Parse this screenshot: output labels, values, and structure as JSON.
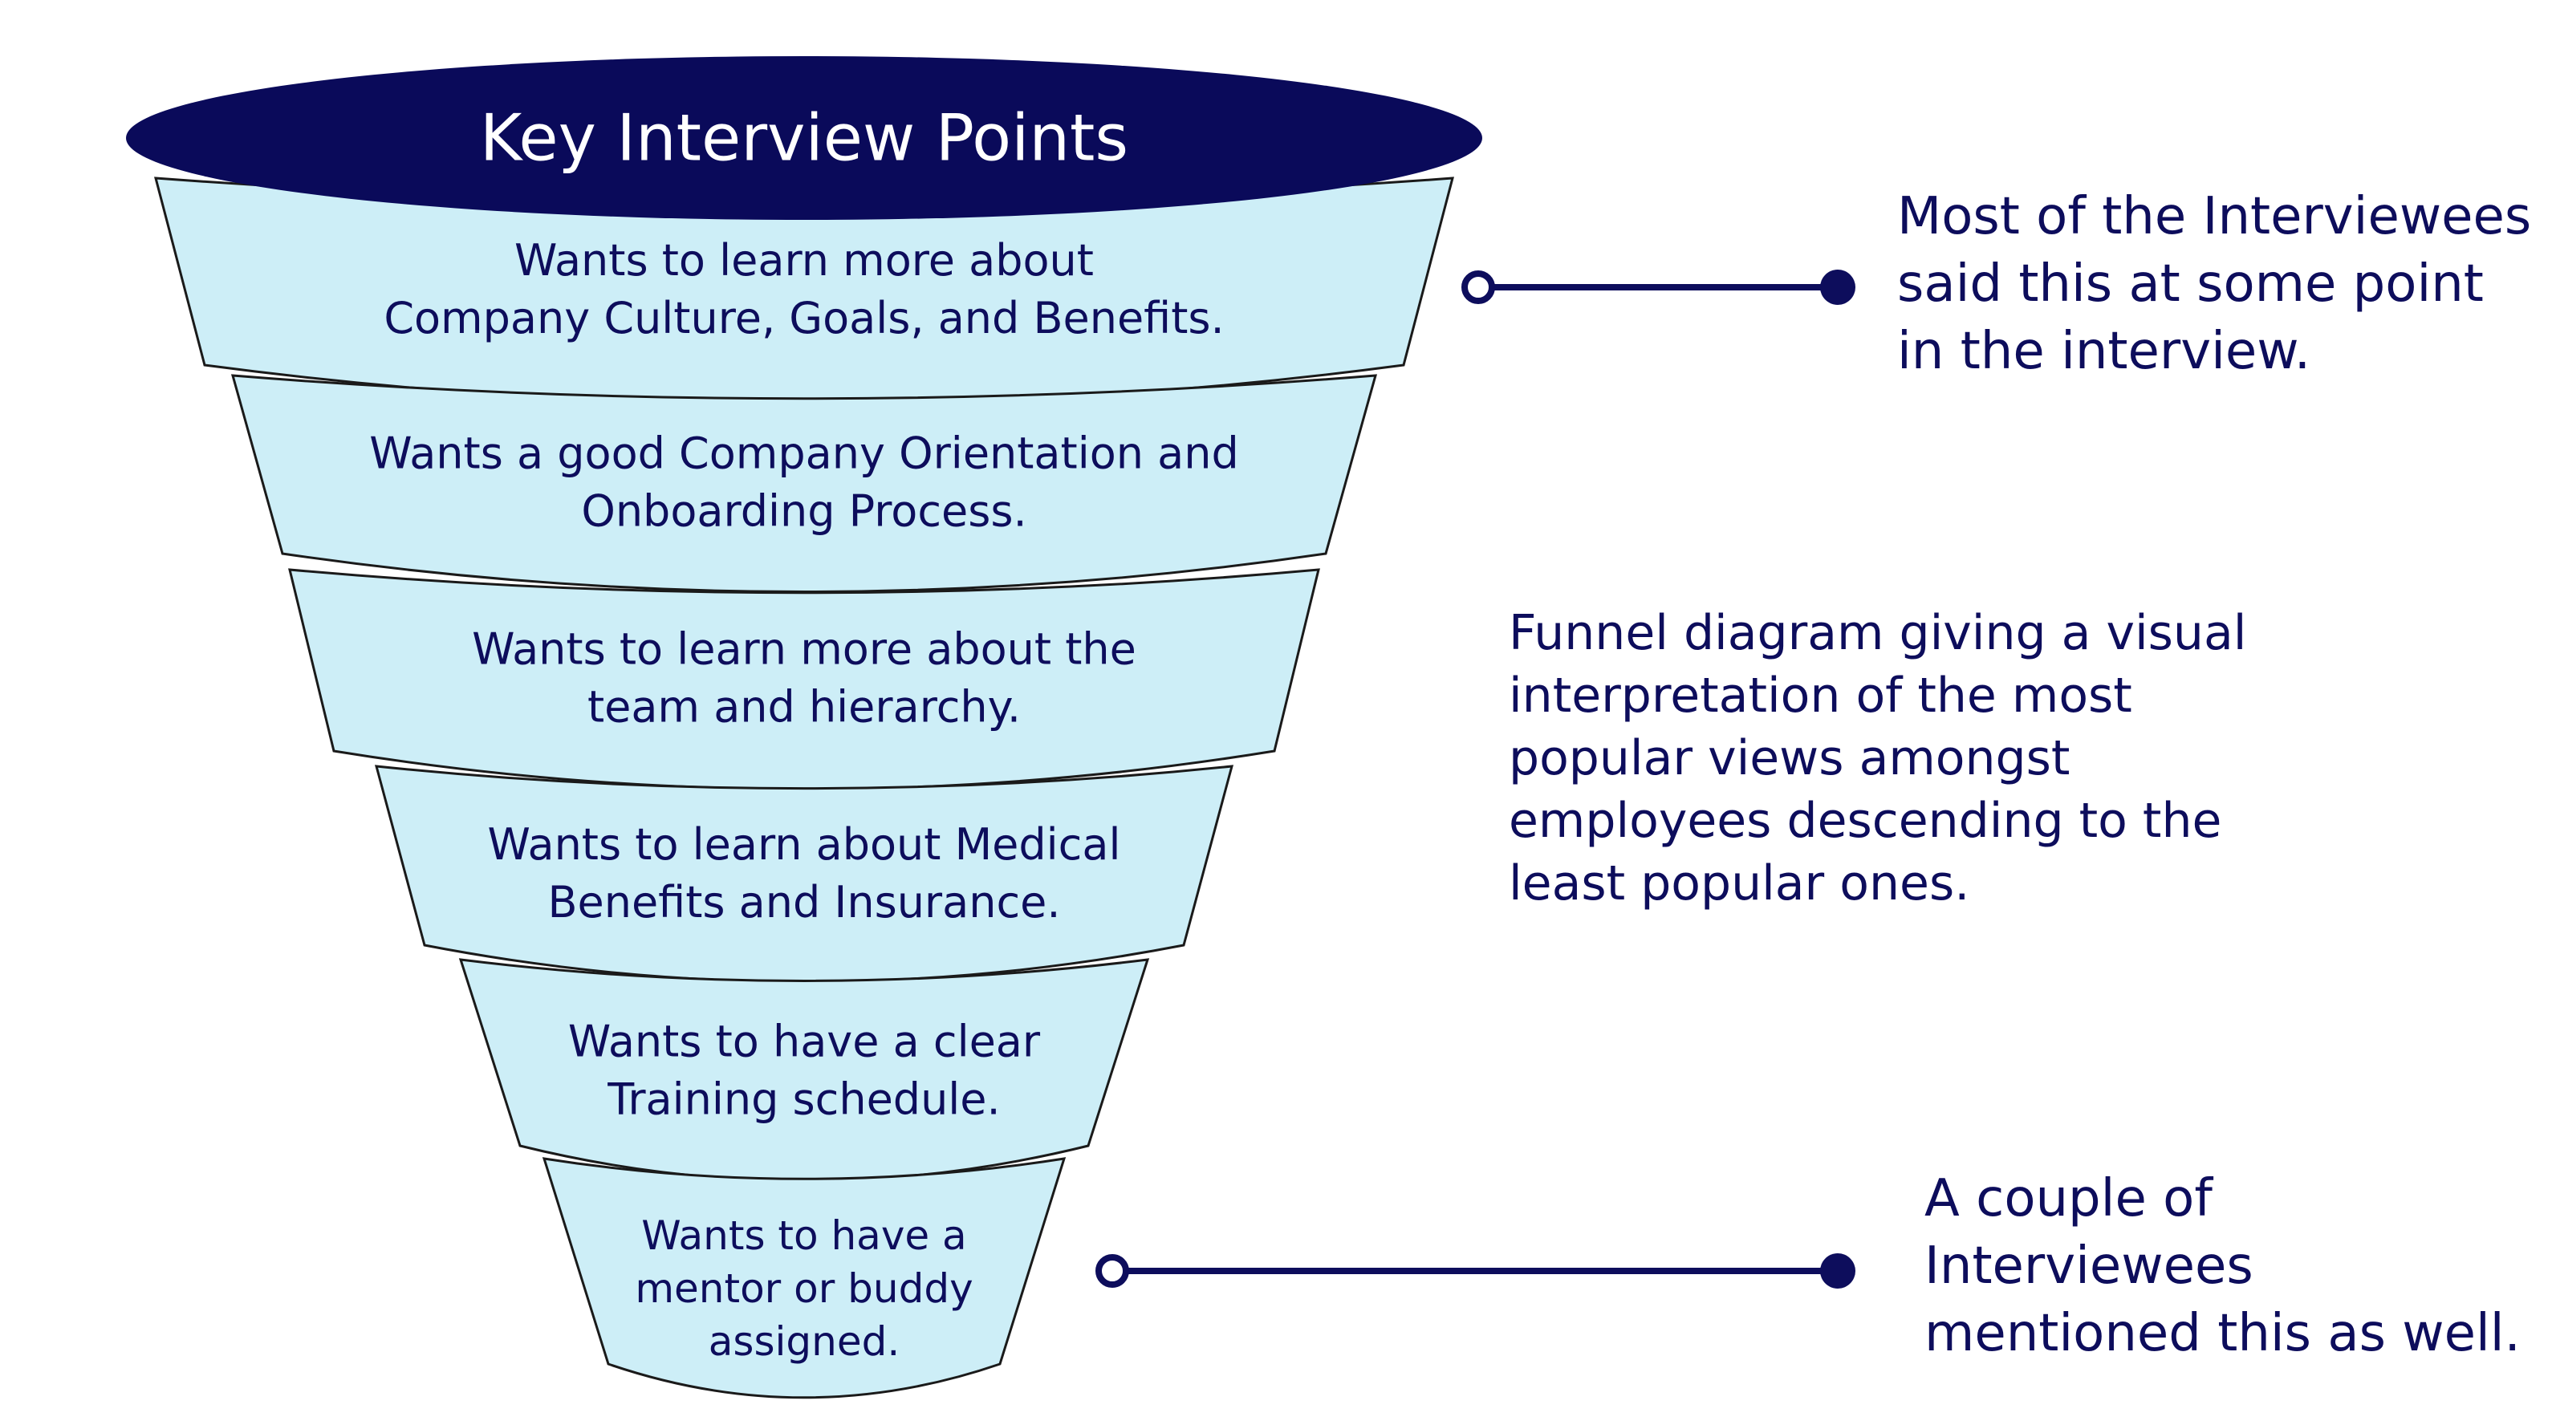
{
  "funnel": {
    "title": "Key Interview Points",
    "tiers": [
      {
        "lines": [
          "Wants to learn more about",
          "Company Culture, Goals, and Benefits."
        ]
      },
      {
        "lines": [
          "Wants a good Company Orientation and",
          "Onboarding Process."
        ]
      },
      {
        "lines": [
          "Wants to learn more about the",
          "team and hierarchy."
        ]
      },
      {
        "lines": [
          "Wants to learn about Medical",
          "Benefits and Insurance."
        ]
      },
      {
        "lines": [
          "Wants to have a clear",
          "Training schedule."
        ]
      },
      {
        "lines": [
          "Wants to have a",
          "mentor or buddy",
          "assigned."
        ]
      }
    ]
  },
  "callouts": {
    "top": {
      "lines": [
        "Most of the Interviewees",
        "said this at some point",
        "in the interview."
      ]
    },
    "middle": {
      "lines": [
        "Funnel diagram giving a visual",
        "interpretation of the most",
        "popular views amongst",
        "employees descending to the",
        "least popular ones."
      ]
    },
    "bottom": {
      "lines": [
        "A couple of",
        "Interviewees",
        "mentioned this as well."
      ]
    }
  },
  "colors": {
    "header_fill": "#0a0a5a",
    "tier_fill": "#cdeef7",
    "outline": "#1a1a1a",
    "text": "#0d0d5c",
    "connector": "#0d0d5c"
  }
}
